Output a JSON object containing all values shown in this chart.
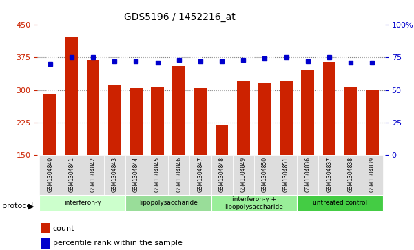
{
  "title": "GDS5196 / 1452216_at",
  "samples": [
    "GSM1304840",
    "GSM1304841",
    "GSM1304842",
    "GSM1304843",
    "GSM1304844",
    "GSM1304845",
    "GSM1304846",
    "GSM1304847",
    "GSM1304848",
    "GSM1304849",
    "GSM1304850",
    "GSM1304851",
    "GSM1304836",
    "GSM1304837",
    "GSM1304838",
    "GSM1304839"
  ],
  "counts": [
    290,
    422,
    370,
    313,
    305,
    307,
    355,
    305,
    220,
    320,
    315,
    320,
    345,
    365,
    308,
    300
  ],
  "percentile_ranks": [
    70,
    75,
    75,
    72,
    72,
    71,
    73,
    72,
    72,
    73,
    74,
    75,
    72,
    75,
    71,
    71
  ],
  "groups": [
    {
      "label": "interferon-γ",
      "start": 0,
      "end": 4,
      "color": "#ccffcc"
    },
    {
      "label": "lipopolysaccharide",
      "start": 4,
      "end": 8,
      "color": "#99dd99"
    },
    {
      "label": "interferon-γ +\nlipopolysaccharide",
      "start": 8,
      "end": 12,
      "color": "#99ee99"
    },
    {
      "label": "untreated control",
      "start": 12,
      "end": 16,
      "color": "#44cc44"
    }
  ],
  "ylim_left": [
    150,
    450
  ],
  "ylim_right": [
    0,
    100
  ],
  "yticks_left": [
    150,
    225,
    300,
    375,
    450
  ],
  "yticks_right": [
    0,
    25,
    50,
    75,
    100
  ],
  "bar_color": "#cc2200",
  "dot_color": "#0000cc",
  "grid_color": "#888888",
  "bg_color": "#ffffff",
  "tick_bg_color": "#dddddd"
}
